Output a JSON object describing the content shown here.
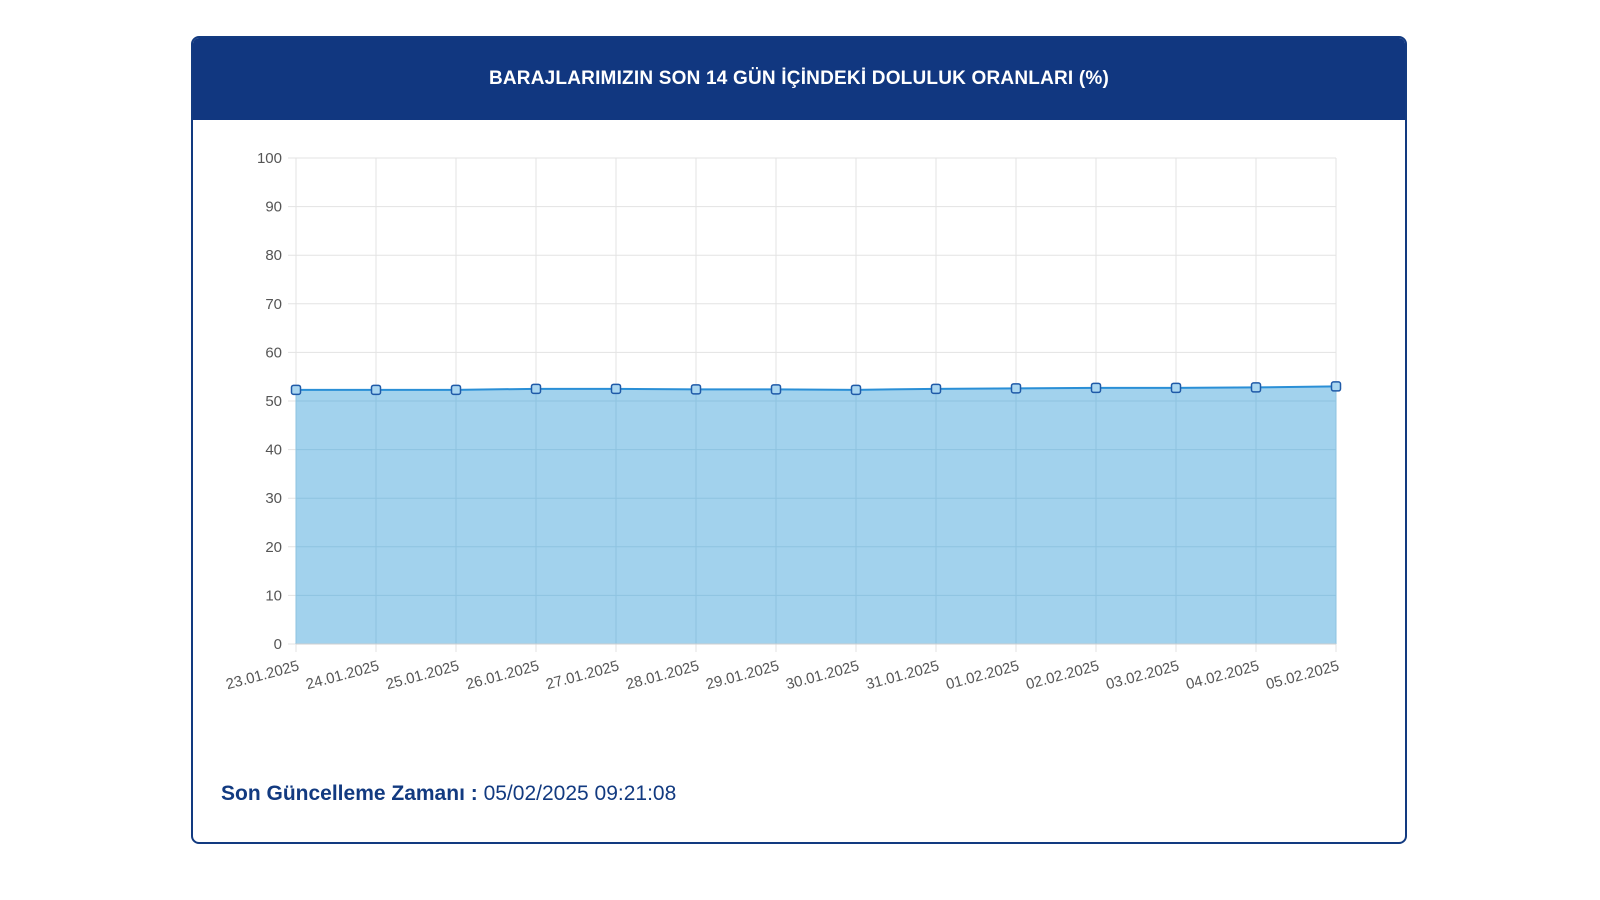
{
  "header": {
    "title": "BARAJLARIMIZIN SON 14 GÜN İÇİNDEKİ DOLULUK ORANLARI (%)"
  },
  "footer": {
    "label": "Son Güncelleme Zamanı :",
    "value": "05/02/2025 09:21:08"
  },
  "colors": {
    "header_bg": "#113780",
    "line": "#2a8fd6",
    "area_fill": "#9dd0ec",
    "marker_stroke": "#1f5aa8",
    "grid": "#e3e3e3"
  },
  "chart_data": {
    "type": "area",
    "title": "",
    "xlabel": "",
    "ylabel": "",
    "ylim": [
      0,
      100
    ],
    "yticks": [
      0,
      10,
      20,
      30,
      40,
      50,
      60,
      70,
      80,
      90,
      100
    ],
    "grid": true,
    "categories": [
      "23.01.2025",
      "24.01.2025",
      "25.01.2025",
      "26.01.2025",
      "27.01.2025",
      "28.01.2025",
      "29.01.2025",
      "30.01.2025",
      "31.01.2025",
      "01.02.2025",
      "02.02.2025",
      "03.02.2025",
      "04.02.2025",
      "05.02.2025"
    ],
    "series": [
      {
        "values": [
          52.3,
          52.3,
          52.3,
          52.5,
          52.5,
          52.4,
          52.4,
          52.3,
          52.5,
          52.6,
          52.7,
          52.7,
          52.8,
          53.0
        ]
      }
    ]
  }
}
